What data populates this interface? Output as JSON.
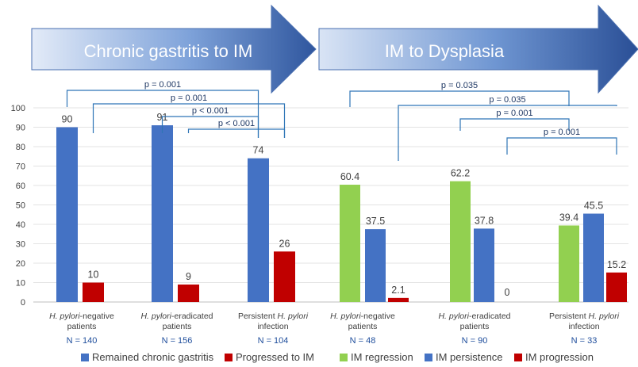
{
  "banners": {
    "left": "Chronic gastritis to IM",
    "right": "IM to Dysplasia"
  },
  "colors": {
    "remained": "#4472C4",
    "progressed": "#C00000",
    "regression": "#92D050",
    "persistence": "#4472C4",
    "progression": "#C00000",
    "bracket": "#2E75B6",
    "n_label": "#1F4E9C"
  },
  "chart_data": {
    "type": "bar",
    "ylim": [
      0,
      100
    ],
    "yticks": [
      0,
      10,
      20,
      30,
      40,
      50,
      60,
      70,
      80,
      90,
      100
    ],
    "panels": [
      {
        "name": "Chronic gastritis to IM",
        "groups": [
          {
            "label_parts": [
              {
                "t": "H. pylori",
                "i": true
              },
              {
                "t": "-negative",
                "i": false
              }
            ],
            "label_line2": "patients",
            "n": "N = 140"
          },
          {
            "label_parts": [
              {
                "t": "H. pylori",
                "i": true
              },
              {
                "t": "-eradicated",
                "i": false
              }
            ],
            "label_line2": "patients",
            "n": "N = 156"
          },
          {
            "label_parts": [
              {
                "t": "Persistent ",
                "i": false
              },
              {
                "t": "H. pylori",
                "i": true
              }
            ],
            "label_line2": "infection",
            "n": "N = 104"
          }
        ],
        "series": [
          {
            "name": "Remained chronic gastritis",
            "color_key": "remained",
            "values": [
              90,
              91,
              74
            ],
            "labels": [
              "90",
              "91",
              "74"
            ]
          },
          {
            "name": "Progressed to IM",
            "color_key": "progressed",
            "values": [
              10,
              9,
              26
            ],
            "labels": [
              "10",
              "9",
              "26"
            ]
          }
        ],
        "comparisons": [
          {
            "label": "p = 0.001",
            "from": [
              0,
              0
            ],
            "to": [
              2,
              0
            ]
          },
          {
            "label": "p = 0.001",
            "from": [
              0,
              1
            ],
            "to": [
              2,
              1
            ]
          },
          {
            "label": "p < 0.001",
            "from": [
              1,
              0
            ],
            "to": [
              2,
              0
            ]
          },
          {
            "label": "p < 0.001",
            "from": [
              1,
              1
            ],
            "to": [
              2,
              1
            ]
          }
        ]
      },
      {
        "name": "IM to Dysplasia",
        "groups": [
          {
            "label_parts": [
              {
                "t": "H. pylori",
                "i": true
              },
              {
                "t": "-negative",
                "i": false
              }
            ],
            "label_line2": "patients",
            "n": "N = 48"
          },
          {
            "label_parts": [
              {
                "t": "H. pylori",
                "i": true
              },
              {
                "t": "-eradicated",
                "i": false
              }
            ],
            "label_line2": "patients",
            "n": "N = 90"
          },
          {
            "label_parts": [
              {
                "t": "Persistent ",
                "i": false
              },
              {
                "t": "H. pylori",
                "i": true
              }
            ],
            "label_line2": "infection",
            "n": "N = 33"
          }
        ],
        "series": [
          {
            "name": "IM regression",
            "color_key": "regression",
            "values": [
              60.4,
              62.2,
              39.4
            ],
            "labels": [
              "60.4",
              "62.2",
              "39.4"
            ]
          },
          {
            "name": "IM persistence",
            "color_key": "persistence",
            "values": [
              37.5,
              37.8,
              45.5
            ],
            "labels": [
              "37.5",
              "37.8",
              "45.5"
            ]
          },
          {
            "name": "IM progression",
            "color_key": "progression",
            "values": [
              2.1,
              0,
              15.2
            ],
            "labels": [
              "2.1",
              "0",
              "15.2"
            ]
          }
        ],
        "comparisons": [
          {
            "label": "p = 0.035",
            "from": [
              0,
              0
            ],
            "to": [
              2,
              0
            ]
          },
          {
            "label": "p = 0.035",
            "from": [
              0,
              2
            ],
            "to": [
              2,
              2
            ]
          },
          {
            "label": "p = 0.001",
            "from": [
              1,
              0
            ],
            "to": [
              2,
              0
            ]
          },
          {
            "label": "p = 0.001",
            "from": [
              1,
              2
            ],
            "to": [
              2,
              2
            ]
          }
        ]
      }
    ]
  }
}
